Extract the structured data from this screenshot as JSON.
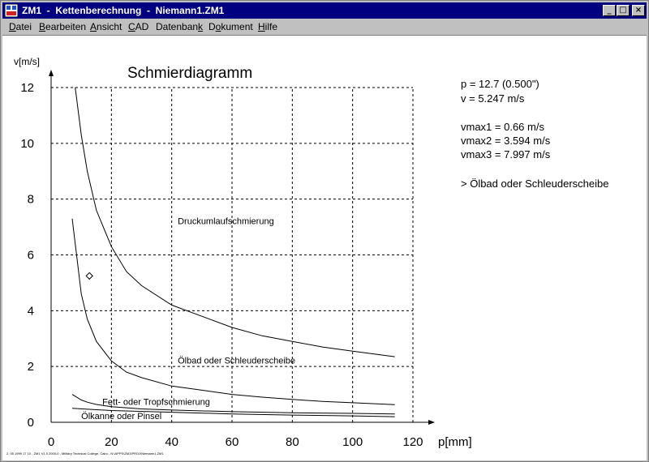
{
  "window": {
    "title": "ZM1  -  Kettenberechnung  -  Niemann1.ZM1",
    "app_icon": "zm1-app-icon",
    "minimize_label": "_",
    "maximize_label": "□",
    "close_label": "×"
  },
  "menu": {
    "items": [
      {
        "pre": "",
        "acc": "D",
        "post": "atei"
      },
      {
        "pre": "",
        "acc": "B",
        "post": "earbeiten"
      },
      {
        "pre": "",
        "acc": "A",
        "post": "nsicht"
      },
      {
        "pre": "",
        "acc": "C",
        "post": "AD"
      },
      {
        "pre": "Datenban",
        "acc": "k",
        "post": ""
      },
      {
        "pre": "D",
        "acc": "o",
        "post": "kument"
      },
      {
        "pre": "",
        "acc": "H",
        "post": "ilfe"
      }
    ]
  },
  "info": {
    "pitch": "p = 12.7 (0.500\")",
    "velocity": "v = 5.247 m/s",
    "vmax1": "vmax1 = 0.66 m/s",
    "vmax2": "vmax2 = 3.594 m/s",
    "vmax3": "vmax3 = 7.997 m/s",
    "result": "> Ölbad oder Schleuderscheibe"
  },
  "status_text": "2. 05 1999 17 10 - ZM1 V1.0 2000-0 - Military Technical College, Cairo - N:\\APPS\\ZM1\\PROJ\\Niemann1.ZM1",
  "chart_data": {
    "type": "line",
    "title": "Schmierdiagramm",
    "xlabel": "p[mm]",
    "ylabel": "v[m/s]",
    "xlim": [
      0,
      125
    ],
    "ylim": [
      0,
      12.5
    ],
    "x_ticks": [
      0,
      20,
      40,
      60,
      80,
      100,
      120
    ],
    "y_ticks": [
      0,
      2,
      4,
      6,
      8,
      10,
      12
    ],
    "grid": true,
    "grid_style": "dashed",
    "series": [
      {
        "x": [
          8,
          10,
          12,
          15,
          20,
          25,
          30,
          40,
          50,
          60,
          70,
          80,
          90,
          100,
          114
        ],
        "y": [
          12,
          10.3,
          9.0,
          7.6,
          6.3,
          5.4,
          4.9,
          4.2,
          3.8,
          3.4,
          3.1,
          2.9,
          2.7,
          2.55,
          2.35
        ]
      },
      {
        "x": [
          7,
          10,
          12,
          15,
          20,
          25,
          30,
          40,
          50,
          60,
          70,
          80,
          90,
          100,
          114
        ],
        "y": [
          7.3,
          4.6,
          3.7,
          2.9,
          2.2,
          1.8,
          1.6,
          1.3,
          1.15,
          1.0,
          0.9,
          0.82,
          0.75,
          0.7,
          0.63
        ]
      },
      {
        "x": [
          7,
          10,
          12,
          15,
          20,
          30,
          40,
          60,
          80,
          100,
          114
        ],
        "y": [
          1.0,
          0.8,
          0.72,
          0.64,
          0.56,
          0.48,
          0.44,
          0.38,
          0.34,
          0.32,
          0.3
        ]
      },
      {
        "x": [
          7,
          20,
          40,
          60,
          80,
          100,
          114
        ],
        "y": [
          0.5,
          0.42,
          0.36,
          0.3,
          0.26,
          0.23,
          0.2
        ]
      }
    ],
    "point": {
      "x": 12.7,
      "y": 5.247
    },
    "annotations": [
      {
        "text": "Druckumlaufschmierung",
        "x": 42,
        "y": 7.1
      },
      {
        "text": "Ölbad oder Schleuderscheibe",
        "x": 42,
        "y": 2.1
      },
      {
        "text": "Fett- oder Tropfschmierung",
        "x": 17,
        "y": 0.62
      },
      {
        "text": "Ölkanne oder Pinsel",
        "x": 10,
        "y": 0.12
      }
    ]
  }
}
